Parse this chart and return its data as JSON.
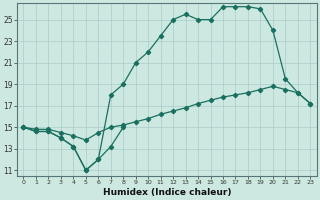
{
  "xlabel": "Humidex (Indice chaleur)",
  "bg_color": "#cce8e0",
  "grid_color": "#aacccc",
  "line_color": "#1a7060",
  "xlim": [
    -0.5,
    23.5
  ],
  "ylim": [
    10.5,
    26.5
  ],
  "xticks": [
    0,
    1,
    2,
    3,
    4,
    5,
    6,
    7,
    8,
    9,
    10,
    11,
    12,
    13,
    14,
    15,
    16,
    17,
    18,
    19,
    20,
    21,
    22,
    23
  ],
  "yticks": [
    11,
    13,
    15,
    17,
    19,
    21,
    23,
    25
  ],
  "line_zigzag": {
    "x": [
      0,
      1,
      2,
      3,
      4,
      5,
      6,
      7,
      8
    ],
    "y": [
      15.0,
      14.6,
      14.6,
      14.0,
      13.2,
      11.0,
      12.0,
      13.2,
      15.0
    ]
  },
  "line_top": {
    "x": [
      0,
      1,
      2,
      3,
      4,
      5,
      6,
      7,
      8,
      9,
      10,
      11,
      12,
      13,
      14,
      15,
      16,
      17,
      18,
      19,
      20,
      21,
      22,
      23
    ],
    "y": [
      15.0,
      14.6,
      14.6,
      14.0,
      13.2,
      11.0,
      12.0,
      18.0,
      19.0,
      21.0,
      22.0,
      23.5,
      25.0,
      25.5,
      25.0,
      25.0,
      26.2,
      26.2,
      26.2,
      26.0,
      24.0,
      19.5,
      18.2,
      17.2
    ]
  },
  "line_grad": {
    "x": [
      0,
      1,
      2,
      3,
      4,
      5,
      6,
      7,
      8,
      9,
      10,
      11,
      12,
      13,
      14,
      15,
      16,
      17,
      18,
      19,
      20,
      21,
      22,
      23
    ],
    "y": [
      15.0,
      14.8,
      14.8,
      14.5,
      14.2,
      13.8,
      14.5,
      15.0,
      15.2,
      15.5,
      15.8,
      16.2,
      16.5,
      16.8,
      17.2,
      17.5,
      17.8,
      18.0,
      18.2,
      18.5,
      18.8,
      18.5,
      18.2,
      17.2
    ]
  }
}
